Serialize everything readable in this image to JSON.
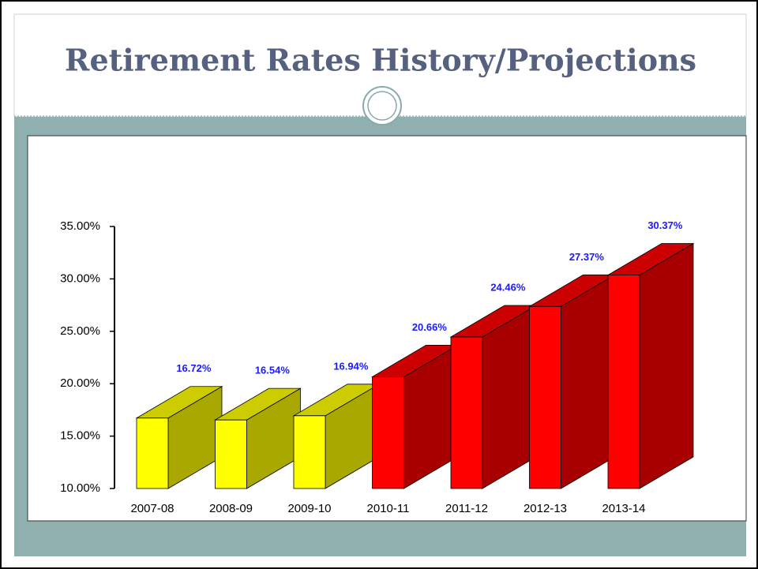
{
  "chart_data": {
    "type": "bar3d",
    "title": "Retirement Rates History/Projections",
    "categories": [
      "2007-08",
      "2008-09",
      "2009-10",
      "2010-11",
      "2011-12",
      "2012-13",
      "2013-14"
    ],
    "values": [
      16.72,
      16.54,
      16.94,
      20.66,
      24.46,
      27.37,
      30.37
    ],
    "value_labels": [
      "16.72%",
      "16.54%",
      "16.94%",
      "20.66%",
      "24.46%",
      "27.37%",
      "30.37%"
    ],
    "colors": [
      "#ffff00",
      "#ffff00",
      "#ffff00",
      "#ff0000",
      "#ff0000",
      "#ff0000",
      "#ff0000"
    ],
    "ylim": [
      10,
      35
    ],
    "yticks": [
      {
        "value": 10,
        "label": "10.00%"
      },
      {
        "value": 15,
        "label": "15.00%"
      },
      {
        "value": 20,
        "label": "20.00%"
      },
      {
        "value": 25,
        "label": "25.00%"
      },
      {
        "value": 30,
        "label": "30.00%"
      },
      {
        "value": 35,
        "label": "35.00%"
      }
    ]
  }
}
